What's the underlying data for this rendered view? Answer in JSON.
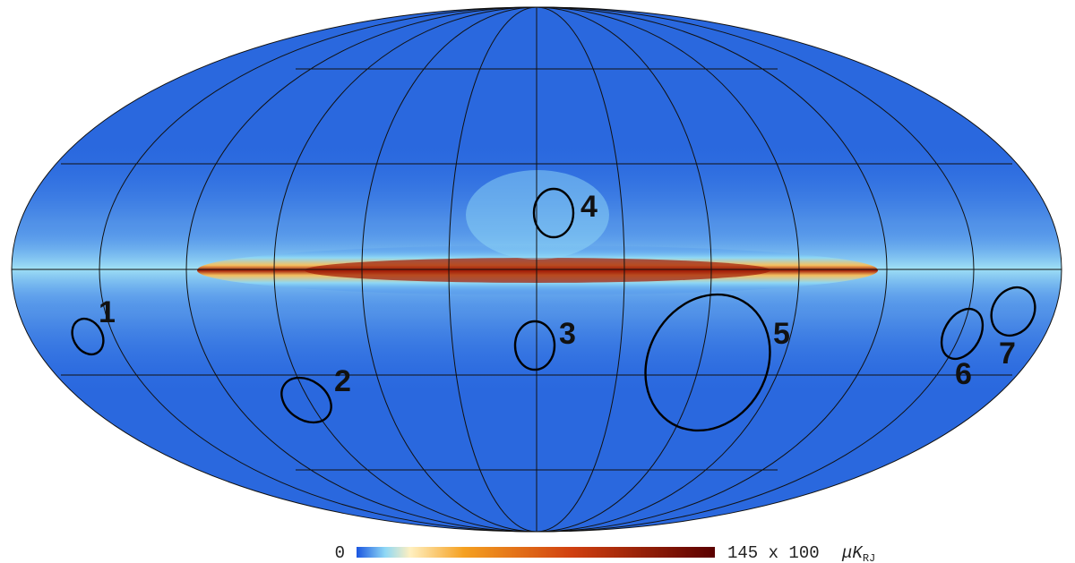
{
  "regions": [
    {
      "label": "1"
    },
    {
      "label": "2"
    },
    {
      "label": "3"
    },
    {
      "label": "4"
    },
    {
      "label": "5"
    },
    {
      "label": "6"
    },
    {
      "label": "7"
    }
  ],
  "colorbar": {
    "min_label": "0",
    "max_label": "145 x 100",
    "unit": "μK",
    "unit_sub": "RJ"
  }
}
